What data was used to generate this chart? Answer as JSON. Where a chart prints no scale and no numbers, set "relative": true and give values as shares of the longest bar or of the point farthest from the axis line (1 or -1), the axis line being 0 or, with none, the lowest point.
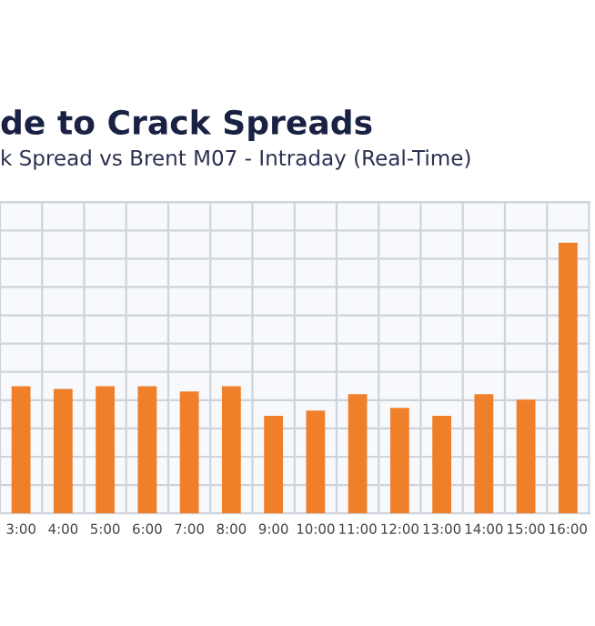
{
  "chart_data": {
    "type": "bar",
    "title": "de to Crack Spreads",
    "subtitle": "k Spread vs Brent M07 - Intraday (Real-Time)",
    "categories": [
      "3:00",
      "4:00",
      "5:00",
      "6:00",
      "7:00",
      "8:00",
      "9:00",
      "10:00",
      "11:00",
      "12:00",
      "13:00",
      "14:00",
      "15:00",
      "16:00"
    ],
    "values": [
      0.47,
      0.46,
      0.47,
      0.47,
      0.45,
      0.47,
      0.36,
      0.38,
      0.44,
      0.39,
      0.36,
      0.44,
      0.42,
      1
    ],
    "color": "#f07f2a",
    "relative": true,
    "grid": true
  }
}
